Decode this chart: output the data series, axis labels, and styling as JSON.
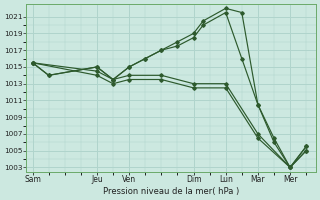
{
  "xlabel": "Pression niveau de la mer( hPa )",
  "background_color": "#cce8e0",
  "grid_color": "#b0d4cc",
  "line_color": "#2d5a2d",
  "ylim": [
    1002.5,
    1022.5
  ],
  "yticks": [
    1003,
    1005,
    1007,
    1009,
    1011,
    1013,
    1015,
    1017,
    1019,
    1021
  ],
  "x_labels": [
    "Sam",
    "Jeu",
    "Ven",
    "Dim",
    "Lun",
    "Mar",
    "Mer"
  ],
  "x_ticks": [
    0,
    2,
    3,
    5,
    6,
    7,
    8
  ],
  "xlim": [
    -0.2,
    8.8
  ],
  "lines": [
    {
      "x": [
        0,
        0.5,
        2,
        2.5,
        3,
        3.5,
        4,
        4.5,
        5,
        5.3,
        6,
        6.5,
        7,
        7.5,
        8,
        8.5
      ],
      "y": [
        1015.5,
        1014,
        1015,
        1013.5,
        1015,
        1016,
        1017,
        1018,
        1019,
        1020.5,
        1022,
        1021.5,
        1010.5,
        1006.5,
        1003,
        1005.5
      ]
    },
    {
      "x": [
        0,
        0.5,
        2,
        2.5,
        3,
        3.5,
        4,
        4.5,
        5,
        5.3,
        6,
        6.5,
        7,
        7.5,
        8,
        8.5
      ],
      "y": [
        1015.5,
        1014,
        1015,
        1013.5,
        1015,
        1016,
        1017,
        1017.5,
        1018.5,
        1020,
        1021.5,
        1016,
        1010.5,
        1006,
        1003,
        1005.5
      ]
    },
    {
      "x": [
        0,
        2,
        2.5,
        3,
        4,
        5,
        6,
        7,
        8,
        8.5
      ],
      "y": [
        1015.5,
        1014.5,
        1013.5,
        1014,
        1014,
        1013,
        1013,
        1007,
        1003,
        1005
      ]
    },
    {
      "x": [
        0,
        2,
        2.5,
        3,
        4,
        5,
        6,
        7,
        8,
        8.5
      ],
      "y": [
        1015.5,
        1014,
        1013,
        1013.5,
        1013.5,
        1012.5,
        1012.5,
        1006.5,
        1003,
        1005
      ]
    }
  ]
}
